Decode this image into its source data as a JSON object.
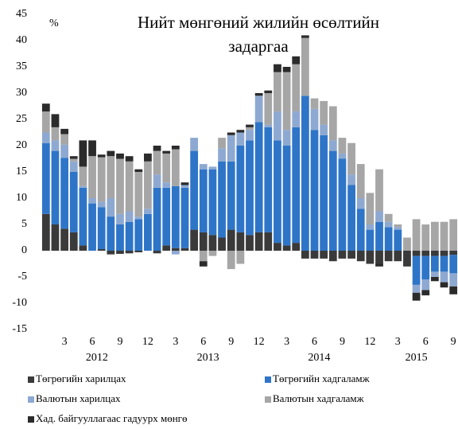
{
  "chart_data": {
    "type": "bar",
    "stacked": true,
    "title": "Нийт мөнгөний  жилийн өсөлтийн задаргаа",
    "unit_label": "%",
    "categories": [
      null,
      null,
      "3",
      null,
      null,
      "6",
      null,
      null,
      "9",
      null,
      null,
      "12",
      null,
      null,
      "3",
      null,
      null,
      "6",
      null,
      null,
      "9",
      null,
      null,
      "12",
      null,
      null,
      "3",
      null,
      null,
      "6",
      null,
      null,
      "9",
      null,
      null,
      "12",
      null,
      null,
      "3",
      null,
      null,
      "6",
      null,
      null,
      "9"
    ],
    "years": [
      "2012",
      "2013",
      "2014",
      "2015"
    ],
    "ylim": [
      -15,
      45
    ],
    "yticks": [
      -15,
      -10,
      -5,
      0,
      5,
      10,
      15,
      20,
      25,
      30,
      35,
      40,
      45
    ],
    "grid": false,
    "series": [
      {
        "name": "Төгрөгийн харилцах",
        "color": "#3a3a3a",
        "values": [
          7,
          5,
          4.2,
          3.5,
          1,
          0,
          0.3,
          -0.7,
          -0.6,
          -0.5,
          -0.3,
          0,
          -0.5,
          1,
          0.5,
          0.5,
          4,
          3.5,
          3,
          2.5,
          4,
          3.5,
          3,
          3.5,
          3.5,
          1.5,
          1,
          1.5,
          -1.5,
          -1.5,
          -1.5,
          -2,
          -1.5,
          -1.5,
          -2,
          -2.5,
          -2.5,
          -2,
          -2,
          -3,
          -1,
          -1,
          -1,
          -1,
          -0.8
        ]
      },
      {
        "name": "Төгрөгийн хадгаламж",
        "color": "#2e75c8",
        "values": [
          13.5,
          14,
          13.5,
          11.5,
          11,
          9,
          8,
          6.5,
          5,
          5.5,
          6,
          7,
          12,
          11,
          11.8,
          11.5,
          15,
          12,
          12.5,
          14.5,
          13,
          16.5,
          18,
          21,
          20,
          19.5,
          19,
          22,
          29.5,
          23,
          22,
          19,
          17.5,
          12.5,
          8,
          4,
          5.5,
          4.5,
          4,
          0,
          -5.5,
          -4.5,
          -3,
          -3,
          -3.5
        ]
      },
      {
        "name": "Валютын харилцах",
        "color": "#8ea9d1",
        "values": [
          2,
          2,
          2.5,
          2,
          0.3,
          1,
          1,
          3.5,
          2,
          2,
          0.5,
          1,
          2.5,
          1,
          -0.7,
          0.5,
          2.5,
          1,
          0.5,
          2.5,
          5,
          2.5,
          2,
          5,
          0.5,
          5.5,
          3,
          3,
          0,
          4,
          2,
          2,
          1,
          2,
          2,
          1,
          2,
          1,
          0.5,
          0,
          -1.5,
          -2,
          -1,
          -2,
          -2.5
        ]
      },
      {
        "name": "Валютын хадгаламж",
        "color": "#a6a6a6",
        "values": [
          4,
          2.5,
          2,
          0.5,
          3.7,
          8,
          8.5,
          8,
          10.5,
          9.5,
          8.5,
          9,
          4.5,
          5.5,
          7,
          0,
          0,
          -2,
          -1,
          2,
          -3.5,
          -2.5,
          0.5,
          0,
          6,
          7.5,
          11,
          9,
          11,
          2,
          4.5,
          6.5,
          3,
          6,
          6.5,
          6,
          8,
          1.5,
          0.5,
          2.5,
          6,
          5,
          5.5,
          5.5,
          6
        ]
      },
      {
        "name": "Хад. байгууллагаас гадуурх мөнгө",
        "color": "#2b2b2b",
        "values": [
          1.5,
          2.5,
          1,
          0.5,
          5,
          3,
          0.5,
          1,
          1,
          1,
          0.5,
          1.5,
          1,
          0.5,
          0.7,
          0.5,
          0,
          -1,
          0,
          0,
          0.5,
          0.5,
          0.5,
          0.5,
          0.5,
          1.5,
          1,
          1.5,
          0.5,
          0,
          0,
          0,
          0,
          0,
          0,
          0,
          -0.5,
          0,
          0,
          0,
          -1.5,
          -1,
          -0.8,
          -1,
          -1.5
        ]
      }
    ]
  }
}
